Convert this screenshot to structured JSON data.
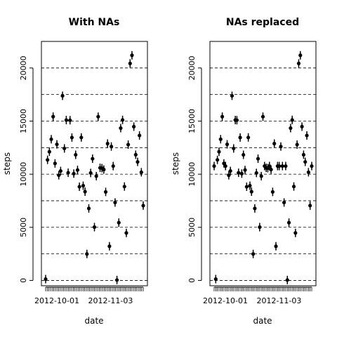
{
  "chart_data": [
    {
      "type": "scatter",
      "title": "With NAs",
      "xlabel": "date",
      "ylabel": "steps",
      "ylim": [
        -500,
        22500
      ],
      "y_ticks": [
        0,
        5000,
        10000,
        15000,
        20000
      ],
      "y_tick_labels": [
        "0",
        "5000",
        "10000",
        "15000",
        "20000"
      ],
      "gridlines_y": [
        0,
        2500,
        5000,
        7500,
        10000,
        12500,
        15000,
        17500,
        20000
      ],
      "x_tick_labels": [
        {
          "index": 1,
          "label": "2012-10-01"
        },
        {
          "index": 34,
          "label": "2012-11-03"
        }
      ],
      "x_count": 61,
      "values": [
        126,
        11352,
        12116,
        13294,
        15420,
        11015,
        12811,
        9900,
        10304,
        17382,
        12426,
        15098,
        10139,
        15084,
        13452,
        10056,
        11829,
        10395,
        8821,
        13460,
        8918,
        8355,
        2492,
        6778,
        10119,
        11458,
        5018,
        9819,
        15414,
        10600,
        10571,
        10439,
        8334,
        12883,
        3219,
        12608,
        10765,
        7336,
        41,
        5441,
        14339,
        15110,
        8841,
        4472,
        12787,
        20427,
        21194,
        14478,
        11834,
        11162,
        13646,
        10183,
        7047
      ]
    },
    {
      "type": "scatter",
      "title": "NAs replaced",
      "xlabel": "date",
      "ylabel": "steps",
      "ylim": [
        -500,
        22500
      ],
      "y_ticks": [
        0,
        5000,
        10000,
        15000,
        20000
      ],
      "y_tick_labels": [
        "0",
        "5000",
        "10000",
        "15000",
        "20000"
      ],
      "gridlines_y": [
        0,
        2500,
        5000,
        7500,
        10000,
        12500,
        15000,
        17500,
        20000
      ],
      "x_tick_labels": [
        {
          "index": 1,
          "label": "2012-10-01"
        },
        {
          "index": 34,
          "label": "2012-11-03"
        }
      ],
      "x_count": 61,
      "values": [
        10766,
        126,
        11352,
        12116,
        13294,
        15420,
        11015,
        10766,
        12811,
        9900,
        10304,
        17382,
        12426,
        15098,
        15084,
        10139,
        13452,
        10056,
        11829,
        10395,
        8821,
        13460,
        8918,
        8355,
        2492,
        6778,
        10119,
        11458,
        5018,
        9819,
        15414,
        10766,
        10600,
        10571,
        10766,
        10439,
        8334,
        12883,
        3219,
        10766,
        10766,
        12608,
        10765,
        7336,
        10766,
        41,
        5441,
        14339,
        15110,
        8841,
        4472,
        12787,
        20427,
        21194,
        14478,
        11834,
        11162,
        13646,
        10183,
        7047,
        10766
      ]
    }
  ]
}
